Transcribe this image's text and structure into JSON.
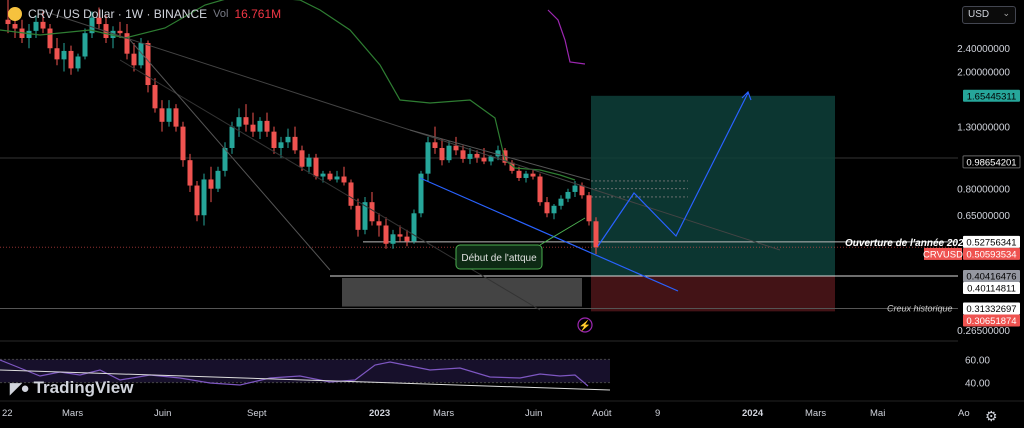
{
  "legend": {
    "symbol": "CRV / US Dollar · 1W · BINANCE",
    "vol_label": "Vol",
    "vol_value": "16.761M"
  },
  "currency_button": "USD",
  "logo_text": "TradingView",
  "colors": {
    "background": "#000000",
    "up": "#26a69a",
    "down": "#ef5350",
    "ma_green": "#2e7d32",
    "ma_purple": "#9c27b0",
    "rsi": "#7e57c2",
    "blue": "#2962ff",
    "target_zone": "#0e3f3a",
    "stop_zone": "#4a1518"
  },
  "chart_data": {
    "type": "candlestick",
    "y_scale": "log",
    "ylim": [
      0.245,
      3.5
    ],
    "price_axis": {
      "ticks": [
        {
          "value": 2.4,
          "label": "2.40000000"
        },
        {
          "value": 2.0,
          "label": "2.00000000"
        },
        {
          "value": 1.3,
          "label": "1.30000000"
        },
        {
          "value": 0.8,
          "label": "0.80000000"
        },
        {
          "value": 0.65,
          "label": "0.65000000"
        },
        {
          "value": 0.265,
          "label": "0.26500000"
        }
      ],
      "badges": [
        {
          "value": 1.65445311,
          "label": "1.65445311",
          "bg": "#26a69a",
          "fg": "#000000"
        },
        {
          "value": 0.98654201,
          "label": "0.98654201",
          "bg": "#000000",
          "fg": "#ffffff"
        },
        {
          "value": 0.52756341,
          "label": "0.52756341",
          "bg": "#ffffff",
          "fg": "#000000"
        },
        {
          "value": 0.50593534,
          "label": "0.50593534",
          "bg": "#ef5350",
          "fg": "#ffffff",
          "tag": "CRVUSD"
        },
        {
          "value": 0.40416476,
          "label": "0.40416476",
          "bg": "#9598a1",
          "fg": "#000000"
        },
        {
          "value": 0.40114811,
          "label": "0.40114811",
          "bg": "#ffffff",
          "fg": "#000000"
        },
        {
          "value": 0.31332697,
          "label": "0.31332697",
          "bg": "#ffffff",
          "fg": "#000000"
        },
        {
          "value": 0.30651874,
          "label": "0.30651874",
          "bg": "#ef5350",
          "fg": "#ffffff"
        }
      ]
    },
    "time_axis": [
      "22",
      "Mars",
      "Juin",
      "Sept",
      "2023",
      "Mars",
      "Juin",
      "Août",
      "9",
      "2024",
      "Mars",
      "Mai",
      "Ao"
    ],
    "annotations": [
      {
        "text": "Ouverture de l'année 2023",
        "value": 0.52756341
      },
      {
        "text": "Creux historique",
        "value": 0.31332697
      },
      {
        "text": "Début de l'attque",
        "value": 0.455
      }
    ],
    "candles": [
      [
        3.0,
        3.5,
        2.7,
        2.9
      ],
      [
        2.9,
        3.2,
        2.6,
        2.8
      ],
      [
        2.8,
        3.0,
        2.5,
        2.6
      ],
      [
        2.6,
        2.9,
        2.4,
        2.75
      ],
      [
        2.75,
        3.1,
        2.6,
        2.95
      ],
      [
        2.95,
        3.2,
        2.7,
        2.8
      ],
      [
        2.8,
        2.9,
        2.3,
        2.4
      ],
      [
        2.4,
        2.6,
        2.1,
        2.2
      ],
      [
        2.2,
        2.5,
        2.0,
        2.35
      ],
      [
        2.35,
        2.45,
        1.95,
        2.05
      ],
      [
        2.05,
        2.3,
        2.0,
        2.25
      ],
      [
        2.25,
        2.8,
        2.2,
        2.7
      ],
      [
        2.7,
        3.2,
        2.6,
        3.05
      ],
      [
        3.05,
        3.3,
        2.8,
        2.9
      ],
      [
        2.9,
        3.1,
        2.5,
        2.6
      ],
      [
        2.6,
        2.85,
        2.4,
        2.75
      ],
      [
        2.75,
        2.95,
        2.6,
        2.7
      ],
      [
        2.7,
        2.9,
        2.2,
        2.3
      ],
      [
        2.3,
        2.5,
        2.0,
        2.1
      ],
      [
        2.1,
        2.6,
        2.05,
        2.5
      ],
      [
        2.5,
        2.55,
        1.7,
        1.8
      ],
      [
        1.8,
        1.9,
        1.45,
        1.5
      ],
      [
        1.5,
        1.6,
        1.25,
        1.35
      ],
      [
        1.35,
        1.6,
        1.3,
        1.5
      ],
      [
        1.5,
        1.55,
        1.25,
        1.3
      ],
      [
        1.3,
        1.35,
        0.95,
        1.0
      ],
      [
        1.0,
        1.05,
        0.78,
        0.82
      ],
      [
        0.82,
        0.85,
        0.62,
        0.65
      ],
      [
        0.65,
        0.9,
        0.6,
        0.86
      ],
      [
        0.86,
        0.95,
        0.72,
        0.8
      ],
      [
        0.8,
        0.95,
        0.78,
        0.92
      ],
      [
        0.92,
        1.15,
        0.88,
        1.1
      ],
      [
        1.1,
        1.35,
        1.05,
        1.3
      ],
      [
        1.3,
        1.5,
        1.2,
        1.4
      ],
      [
        1.4,
        1.55,
        1.25,
        1.32
      ],
      [
        1.32,
        1.45,
        1.2,
        1.25
      ],
      [
        1.25,
        1.4,
        1.18,
        1.36
      ],
      [
        1.36,
        1.45,
        1.2,
        1.25
      ],
      [
        1.25,
        1.3,
        1.05,
        1.1
      ],
      [
        1.1,
        1.2,
        1.02,
        1.15
      ],
      [
        1.15,
        1.28,
        1.1,
        1.2
      ],
      [
        1.2,
        1.3,
        1.05,
        1.08
      ],
      [
        1.08,
        1.12,
        0.92,
        0.95
      ],
      [
        0.95,
        1.05,
        0.9,
        1.02
      ],
      [
        1.02,
        1.05,
        0.86,
        0.88
      ],
      [
        0.88,
        0.92,
        0.84,
        0.9
      ],
      [
        0.9,
        0.92,
        0.85,
        0.86
      ],
      [
        0.86,
        0.92,
        0.84,
        0.88
      ],
      [
        0.88,
        0.95,
        0.82,
        0.84
      ],
      [
        0.84,
        0.86,
        0.68,
        0.7
      ],
      [
        0.7,
        0.74,
        0.55,
        0.58
      ],
      [
        0.58,
        0.75,
        0.56,
        0.72
      ],
      [
        0.72,
        0.78,
        0.6,
        0.62
      ],
      [
        0.62,
        0.66,
        0.55,
        0.6
      ],
      [
        0.6,
        0.64,
        0.5,
        0.52
      ],
      [
        0.52,
        0.58,
        0.5,
        0.56
      ],
      [
        0.56,
        0.6,
        0.53,
        0.55
      ],
      [
        0.55,
        0.58,
        0.51,
        0.53
      ],
      [
        0.53,
        0.68,
        0.52,
        0.66
      ],
      [
        0.66,
        0.92,
        0.64,
        0.9
      ],
      [
        0.9,
        1.2,
        0.85,
        1.15
      ],
      [
        1.15,
        1.3,
        1.05,
        1.1
      ],
      [
        1.1,
        1.18,
        0.96,
        1.0
      ],
      [
        1.0,
        1.16,
        0.98,
        1.12
      ],
      [
        1.12,
        1.2,
        1.04,
        1.08
      ],
      [
        1.08,
        1.12,
        0.98,
        1.01
      ],
      [
        1.01,
        1.1,
        0.97,
        1.05
      ],
      [
        1.05,
        1.08,
        0.98,
        1.02
      ],
      [
        1.02,
        1.1,
        0.97,
        0.99
      ],
      [
        0.99,
        1.04,
        0.96,
        1.03
      ],
      [
        1.03,
        1.12,
        1.0,
        1.08
      ],
      [
        1.08,
        1.1,
        0.96,
        0.98
      ],
      [
        0.98,
        1.0,
        0.9,
        0.92
      ],
      [
        0.92,
        0.95,
        0.85,
        0.87
      ],
      [
        0.87,
        0.92,
        0.84,
        0.9
      ],
      [
        0.9,
        0.93,
        0.86,
        0.88
      ],
      [
        0.88,
        0.9,
        0.7,
        0.72
      ],
      [
        0.72,
        0.75,
        0.64,
        0.66
      ],
      [
        0.66,
        0.71,
        0.63,
        0.7
      ],
      [
        0.7,
        0.76,
        0.68,
        0.74
      ],
      [
        0.74,
        0.8,
        0.72,
        0.78
      ],
      [
        0.78,
        0.85,
        0.75,
        0.82
      ],
      [
        0.82,
        0.84,
        0.74,
        0.76
      ],
      [
        0.76,
        0.78,
        0.6,
        0.62
      ],
      [
        0.62,
        0.64,
        0.48,
        0.506
      ]
    ],
    "rsi": {
      "ticks": [
        {
          "value": 60,
          "label": "60.00"
        },
        {
          "value": 40,
          "label": "40.00"
        }
      ],
      "ylim": [
        25,
        75
      ]
    }
  }
}
